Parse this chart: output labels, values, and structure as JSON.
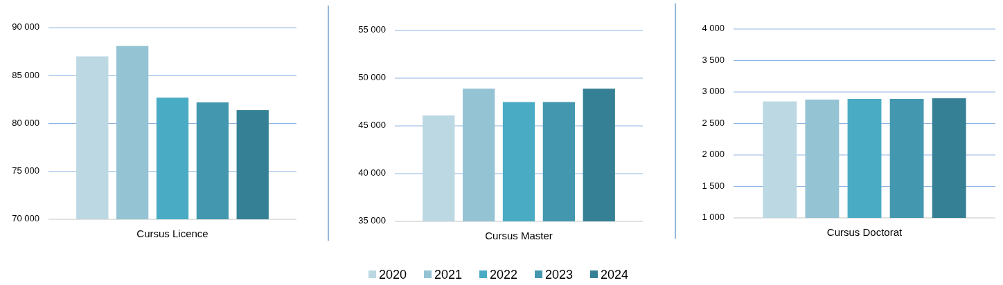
{
  "chart_data": [
    {
      "type": "bar",
      "categories": [
        "Cursus Licence"
      ],
      "ylim": [
        70000,
        90000
      ],
      "yticks": [
        {
          "value": 70000,
          "label": "70 000"
        },
        {
          "value": 75000,
          "label": "75 000"
        },
        {
          "value": 80000,
          "label": "80 000"
        },
        {
          "value": 85000,
          "label": "85 000"
        },
        {
          "value": 90000,
          "label": "90 000"
        }
      ],
      "grid": "y",
      "series": [
        {
          "color": "#bcd8e3",
          "values": [
            87000
          ]
        },
        {
          "color": "#94c3d4",
          "values": [
            88100
          ]
        },
        {
          "color": "#4aabc4",
          "values": [
            82700
          ]
        },
        {
          "color": "#4398af",
          "values": [
            82200
          ]
        },
        {
          "color": "#358094",
          "values": [
            81400
          ]
        }
      ]
    },
    {
      "type": "bar",
      "categories": [
        "Cursus Master"
      ],
      "ylim": [
        35000,
        55000
      ],
      "yticks": [
        {
          "value": 35000,
          "label": "35 000"
        },
        {
          "value": 40000,
          "label": "40 000"
        },
        {
          "value": 45000,
          "label": "45 000"
        },
        {
          "value": 50000,
          "label": "50 000"
        },
        {
          "value": 55000,
          "label": "55 000"
        }
      ],
      "grid": "y",
      "legend": "bottom",
      "series": [
        {
          "name": "2020",
          "color": "#bcd8e3",
          "values": [
            46100
          ]
        },
        {
          "name": "2021",
          "color": "#94c3d4",
          "values": [
            48900
          ]
        },
        {
          "name": "2022",
          "color": "#4aabc4",
          "values": [
            47500
          ]
        },
        {
          "name": "2023",
          "color": "#4398af",
          "values": [
            47500
          ]
        },
        {
          "name": "2024",
          "color": "#358094",
          "values": [
            48900
          ]
        }
      ]
    },
    {
      "type": "bar",
      "categories": [
        "Cursus Doctorat"
      ],
      "ylim": [
        1000,
        4000
      ],
      "yticks": [
        {
          "value": 1000,
          "label": "1 000"
        },
        {
          "value": 1500,
          "label": "1 500"
        },
        {
          "value": 2000,
          "label": "2 000"
        },
        {
          "value": 2500,
          "label": "2 500"
        },
        {
          "value": 3000,
          "label": "3 000"
        },
        {
          "value": 3500,
          "label": "3 500"
        },
        {
          "value": 4000,
          "label": "4 000"
        }
      ],
      "grid": "y",
      "series": [
        {
          "color": "#bcd8e3",
          "values": [
            2850
          ]
        },
        {
          "color": "#94c3d4",
          "values": [
            2880
          ]
        },
        {
          "color": "#4aabc4",
          "values": [
            2890
          ]
        },
        {
          "color": "#4398af",
          "values": [
            2890
          ]
        },
        {
          "color": "#358094",
          "values": [
            2900
          ]
        }
      ]
    }
  ]
}
